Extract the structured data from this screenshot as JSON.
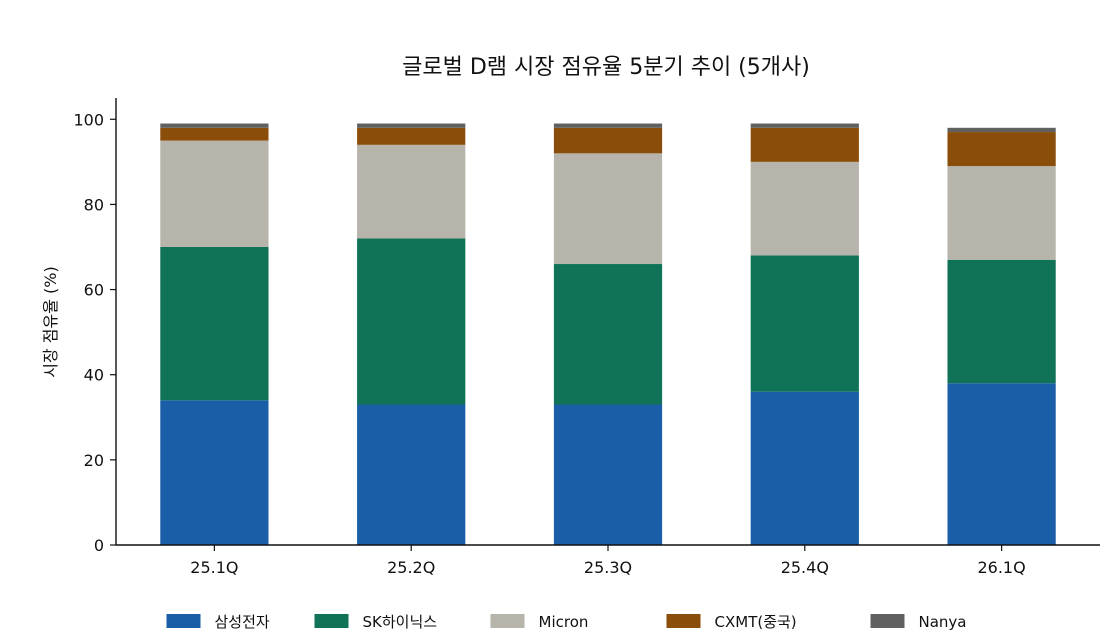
{
  "chart_data": {
    "type": "bar",
    "stacked": true,
    "title": "글로벌 D램 시장 점유율 5분기 추이 (5개사)",
    "xlabel": "",
    "ylabel": "시장 점유율 (%)",
    "ylim": [
      0,
      105
    ],
    "yticks": [
      0,
      20,
      40,
      60,
      80,
      100
    ],
    "grid": false,
    "legend_position": "bottom",
    "categories": [
      "25.1Q",
      "25.2Q",
      "25.3Q",
      "25.4Q",
      "26.1Q"
    ],
    "series": [
      {
        "name": "삼성전자",
        "color": "#1a5ea8",
        "values": [
          34,
          33,
          33,
          36,
          38
        ]
      },
      {
        "name": "SK하이닉스",
        "color": "#107358",
        "values": [
          36,
          39,
          33,
          32,
          29
        ]
      },
      {
        "name": "Micron",
        "color": "#b6b4ab",
        "values": [
          25,
          22,
          26,
          22,
          22
        ]
      },
      {
        "name": "CXMT(중국)",
        "color": "#8a4e0a",
        "values": [
          3,
          4,
          6,
          8,
          8
        ]
      },
      {
        "name": "Nanya",
        "color": "#606060",
        "values": [
          1,
          1,
          1,
          1,
          1
        ]
      }
    ]
  }
}
